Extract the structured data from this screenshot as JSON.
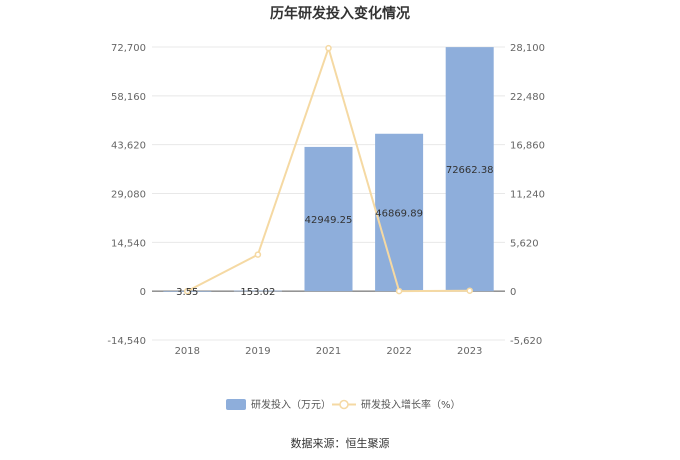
{
  "chart_data": {
    "type": "bar",
    "title": "历年研发投入变化情况",
    "categories": [
      "2018",
      "2019",
      "2021",
      "2022",
      "2023"
    ],
    "series": [
      {
        "name": "研发投入（万元）",
        "type": "bar",
        "axis": "left",
        "color": "#8eaedb",
        "values": [
          3.55,
          153.02,
          42949.25,
          46869.89,
          72662.38
        ],
        "labels": [
          "3.55",
          "153.02",
          "42949.25",
          "46869.89",
          "72662.38"
        ]
      },
      {
        "name": "研发投入增长率（%）",
        "type": "line",
        "axis": "right",
        "color": "#f5d9a3",
        "values": [
          0,
          4210.42,
          27967.28,
          9.13,
          55.03
        ]
      }
    ],
    "y_left": {
      "ylim": [
        -14540,
        72700
      ],
      "ticks": [
        -14540,
        0,
        14540,
        29080,
        43620,
        58160,
        72700
      ],
      "tick_labels": [
        "-14,540",
        "0",
        "14,540",
        "29,080",
        "43,620",
        "58,160",
        "72,700"
      ]
    },
    "y_right": {
      "ylim": [
        -5620,
        28100
      ],
      "ticks": [
        -5620,
        0,
        5620,
        11240,
        16860,
        22480,
        28100
      ],
      "tick_labels": [
        "-5,620",
        "0",
        "5,620",
        "11,240",
        "16,860",
        "22,480",
        "28,100"
      ]
    },
    "grid": true,
    "legend_position": "bottom"
  },
  "source_text": "数据来源：恒生聚源"
}
